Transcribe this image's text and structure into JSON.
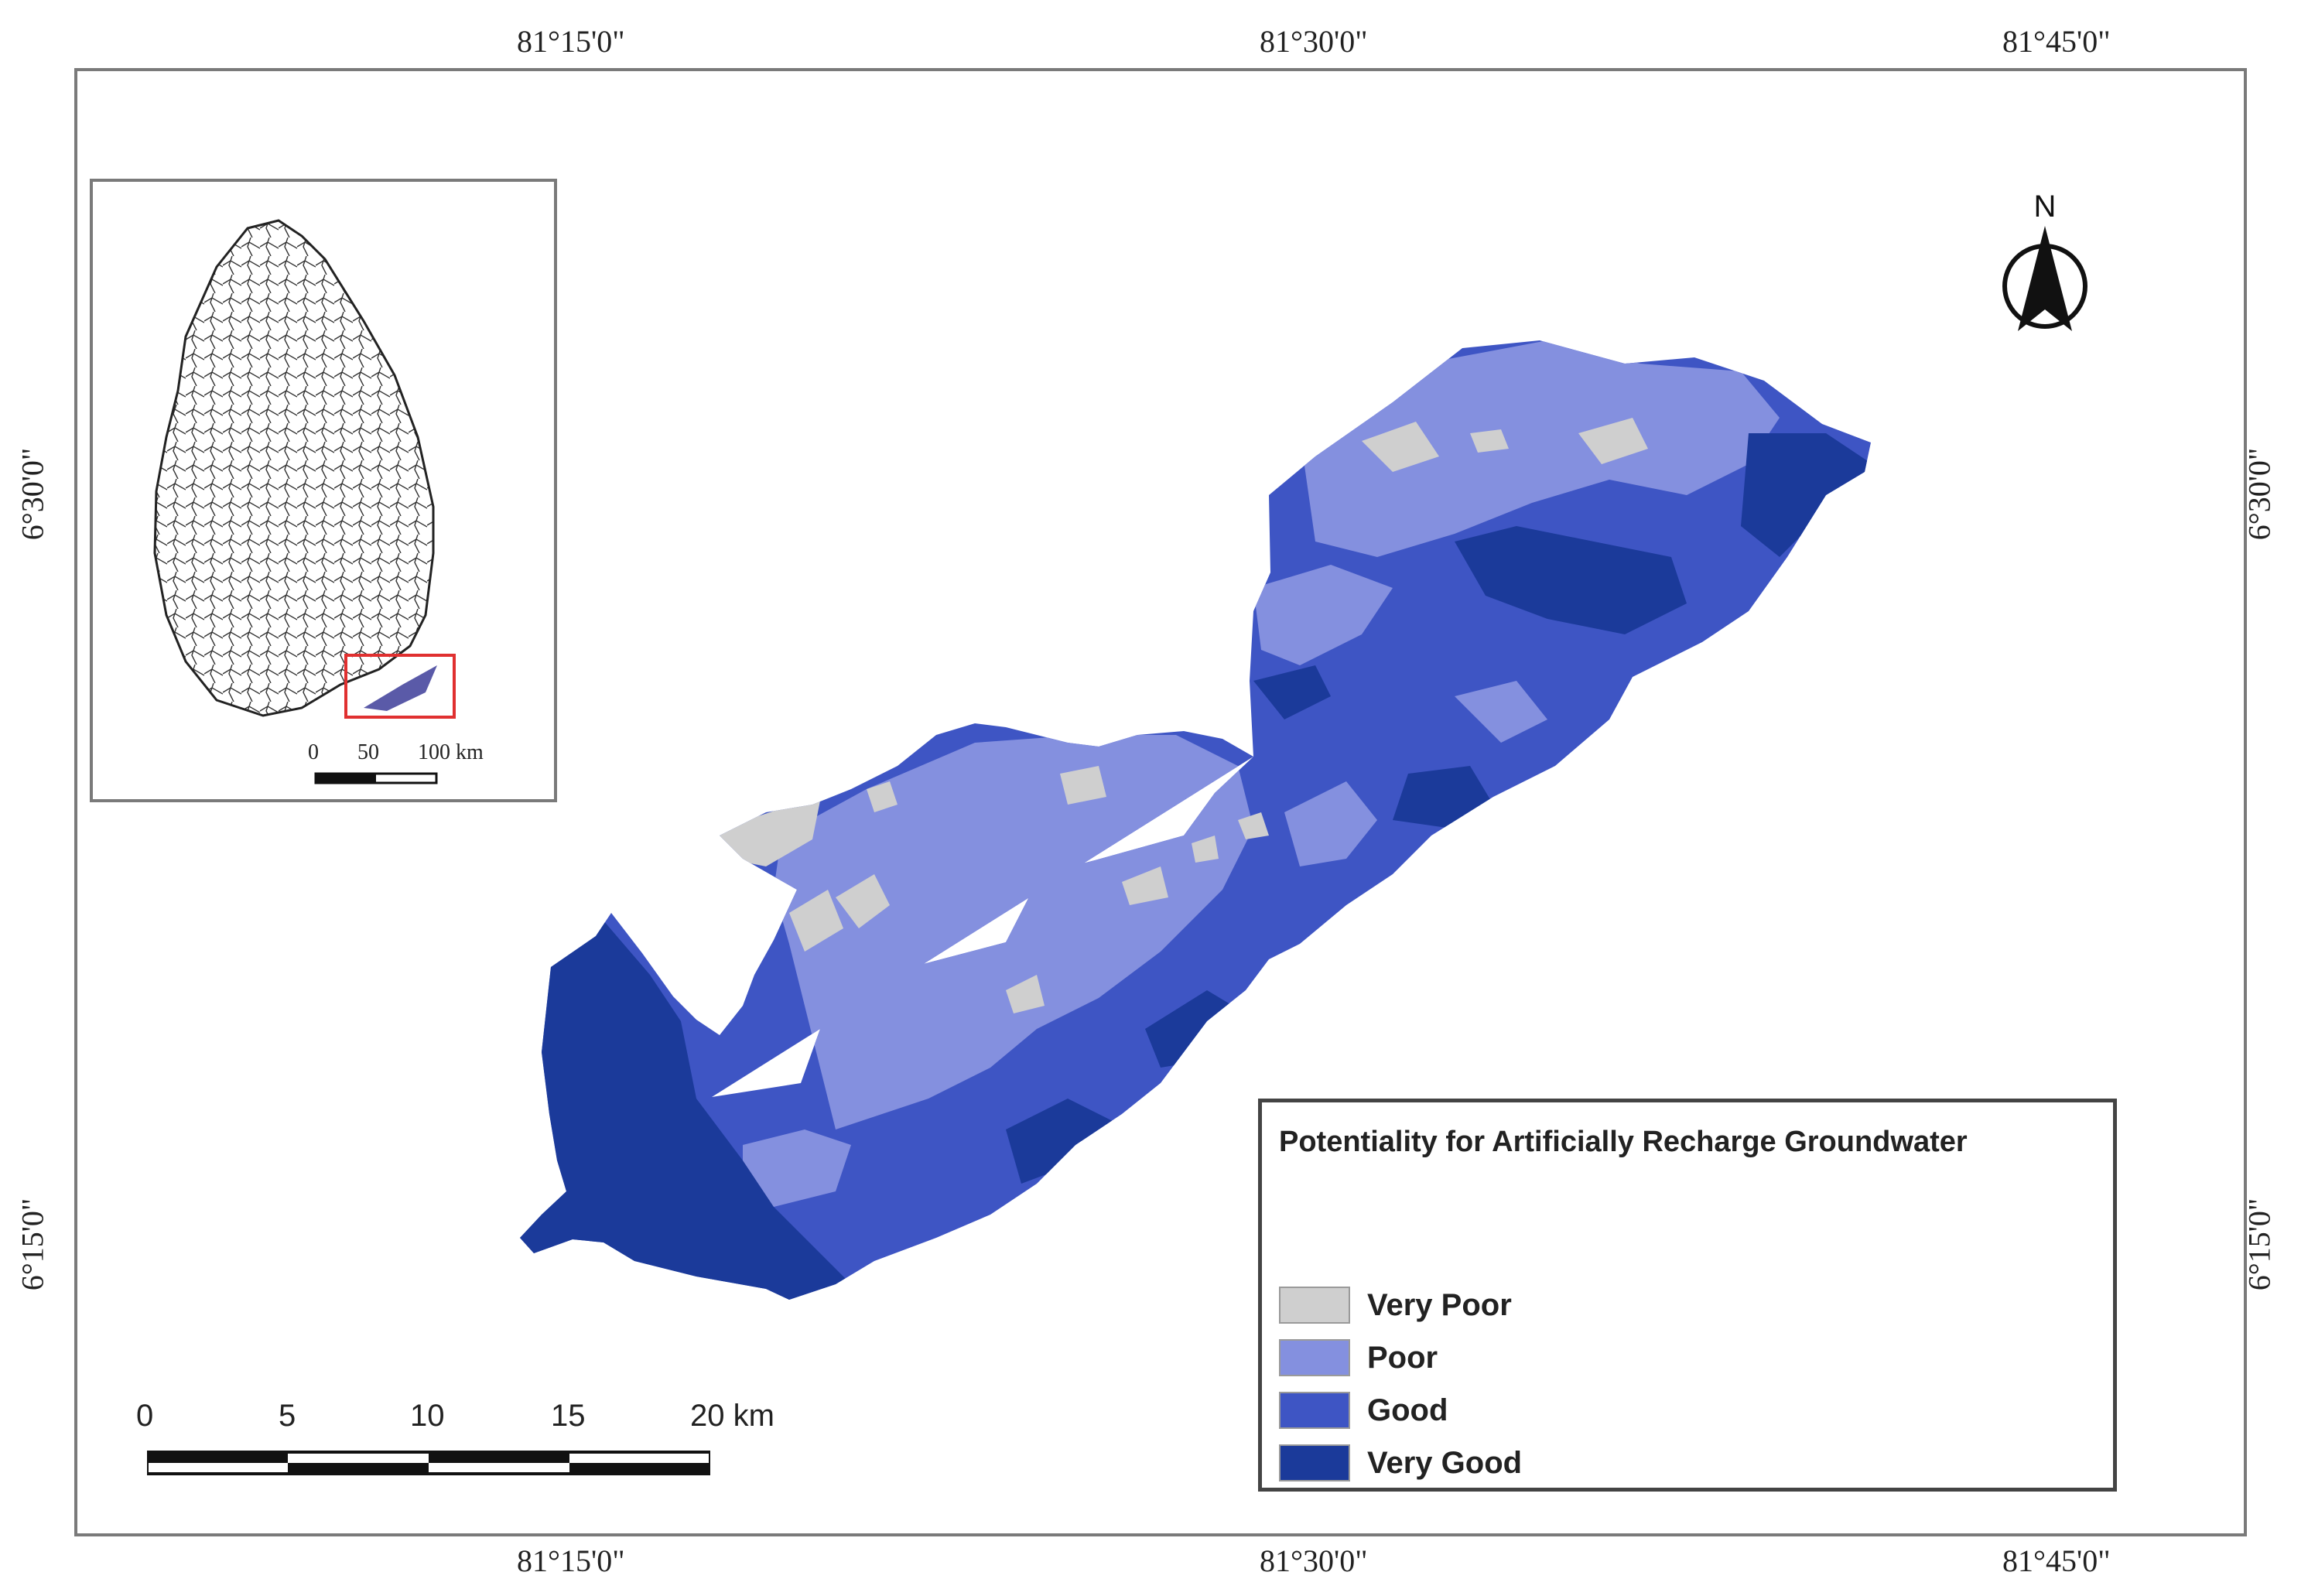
{
  "coordinates": {
    "top": [
      "81°15'0\"",
      "81°30'0\"",
      "81°45'0\""
    ],
    "bottom": [
      "81°15'0\"",
      "81°30'0\"",
      "81°45'0\""
    ],
    "left": [
      "6°30'0\"",
      "6°15'0\""
    ],
    "right": [
      "6°30'0\"",
      "6°15'0\""
    ]
  },
  "north_arrow": {
    "label": "N",
    "icon": "north-arrow-icon"
  },
  "legend": {
    "title": "Potentiality for Artificially Recharge Groundwater",
    "items": [
      {
        "label": "Very Poor",
        "color": "#cfcfcf"
      },
      {
        "label": "Poor",
        "color": "#8490df"
      },
      {
        "label": "Good",
        "color": "#3e55c4"
      },
      {
        "label": "Very Good",
        "color": "#1b3a9a"
      }
    ]
  },
  "scale_bar": {
    "ticks": [
      "0",
      "5",
      "10",
      "15",
      "20 km"
    ]
  },
  "inset_map": {
    "scale_ticks": [
      "0",
      "50",
      "100 km"
    ],
    "highlight_color": "#e03030"
  }
}
